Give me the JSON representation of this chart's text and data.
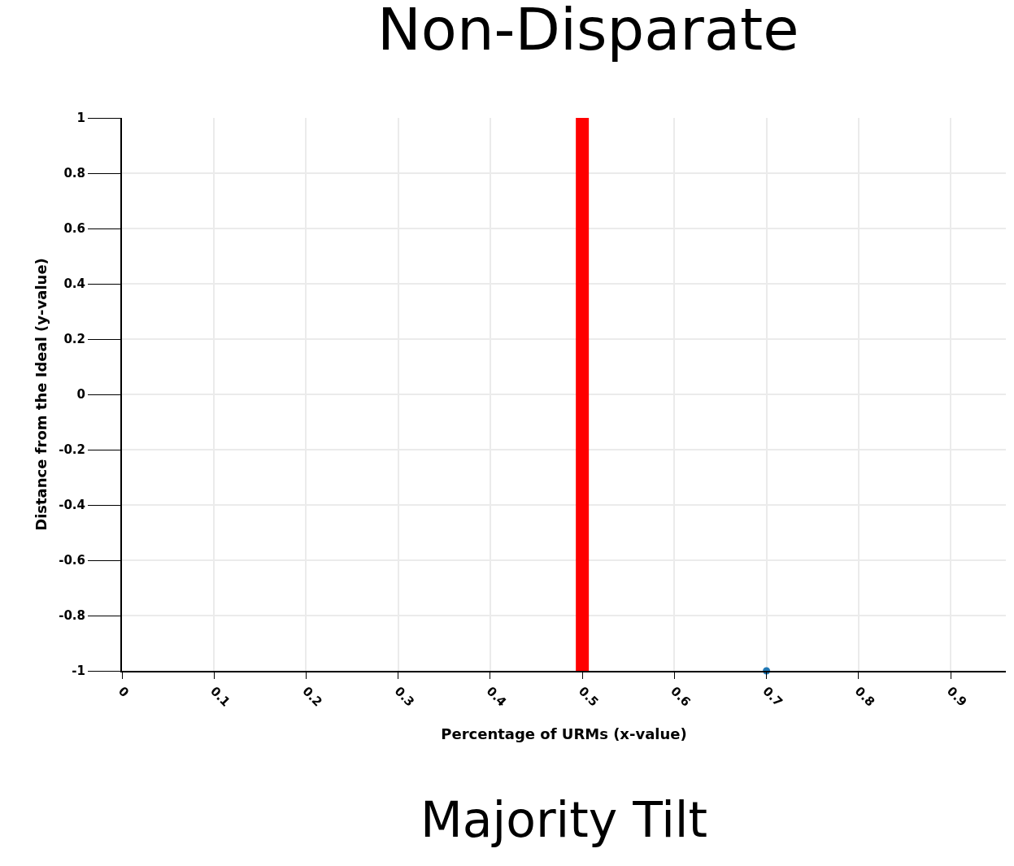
{
  "chart_data": {
    "type": "scatter",
    "title": "Non-Disparate",
    "xlabel": "Percentage of URMs (x-value)",
    "ylabel": "Distance from the Ideal (y-value)",
    "series": [
      {
        "color": "#1f77b4",
        "x": [
          0.7
        ],
        "values": [
          -1
        ]
      }
    ],
    "marker": "circle",
    "ref_lines": [
      {
        "axis": "x",
        "value": 0.5,
        "color": "#ff0000"
      }
    ],
    "xlim": [
      0,
      0.96
    ],
    "xticks": [
      0,
      0.1,
      0.2,
      0.3,
      0.4,
      0.5,
      0.6,
      0.7,
      0.8,
      0.9
    ],
    "ylim": [
      -1,
      1
    ],
    "yticks": [
      -1,
      -0.8,
      -0.6,
      -0.4,
      -0.2,
      0,
      0.2,
      0.4,
      0.6,
      0.8,
      1
    ],
    "grid": true,
    "annotations": [
      "Majority Tilt"
    ]
  }
}
